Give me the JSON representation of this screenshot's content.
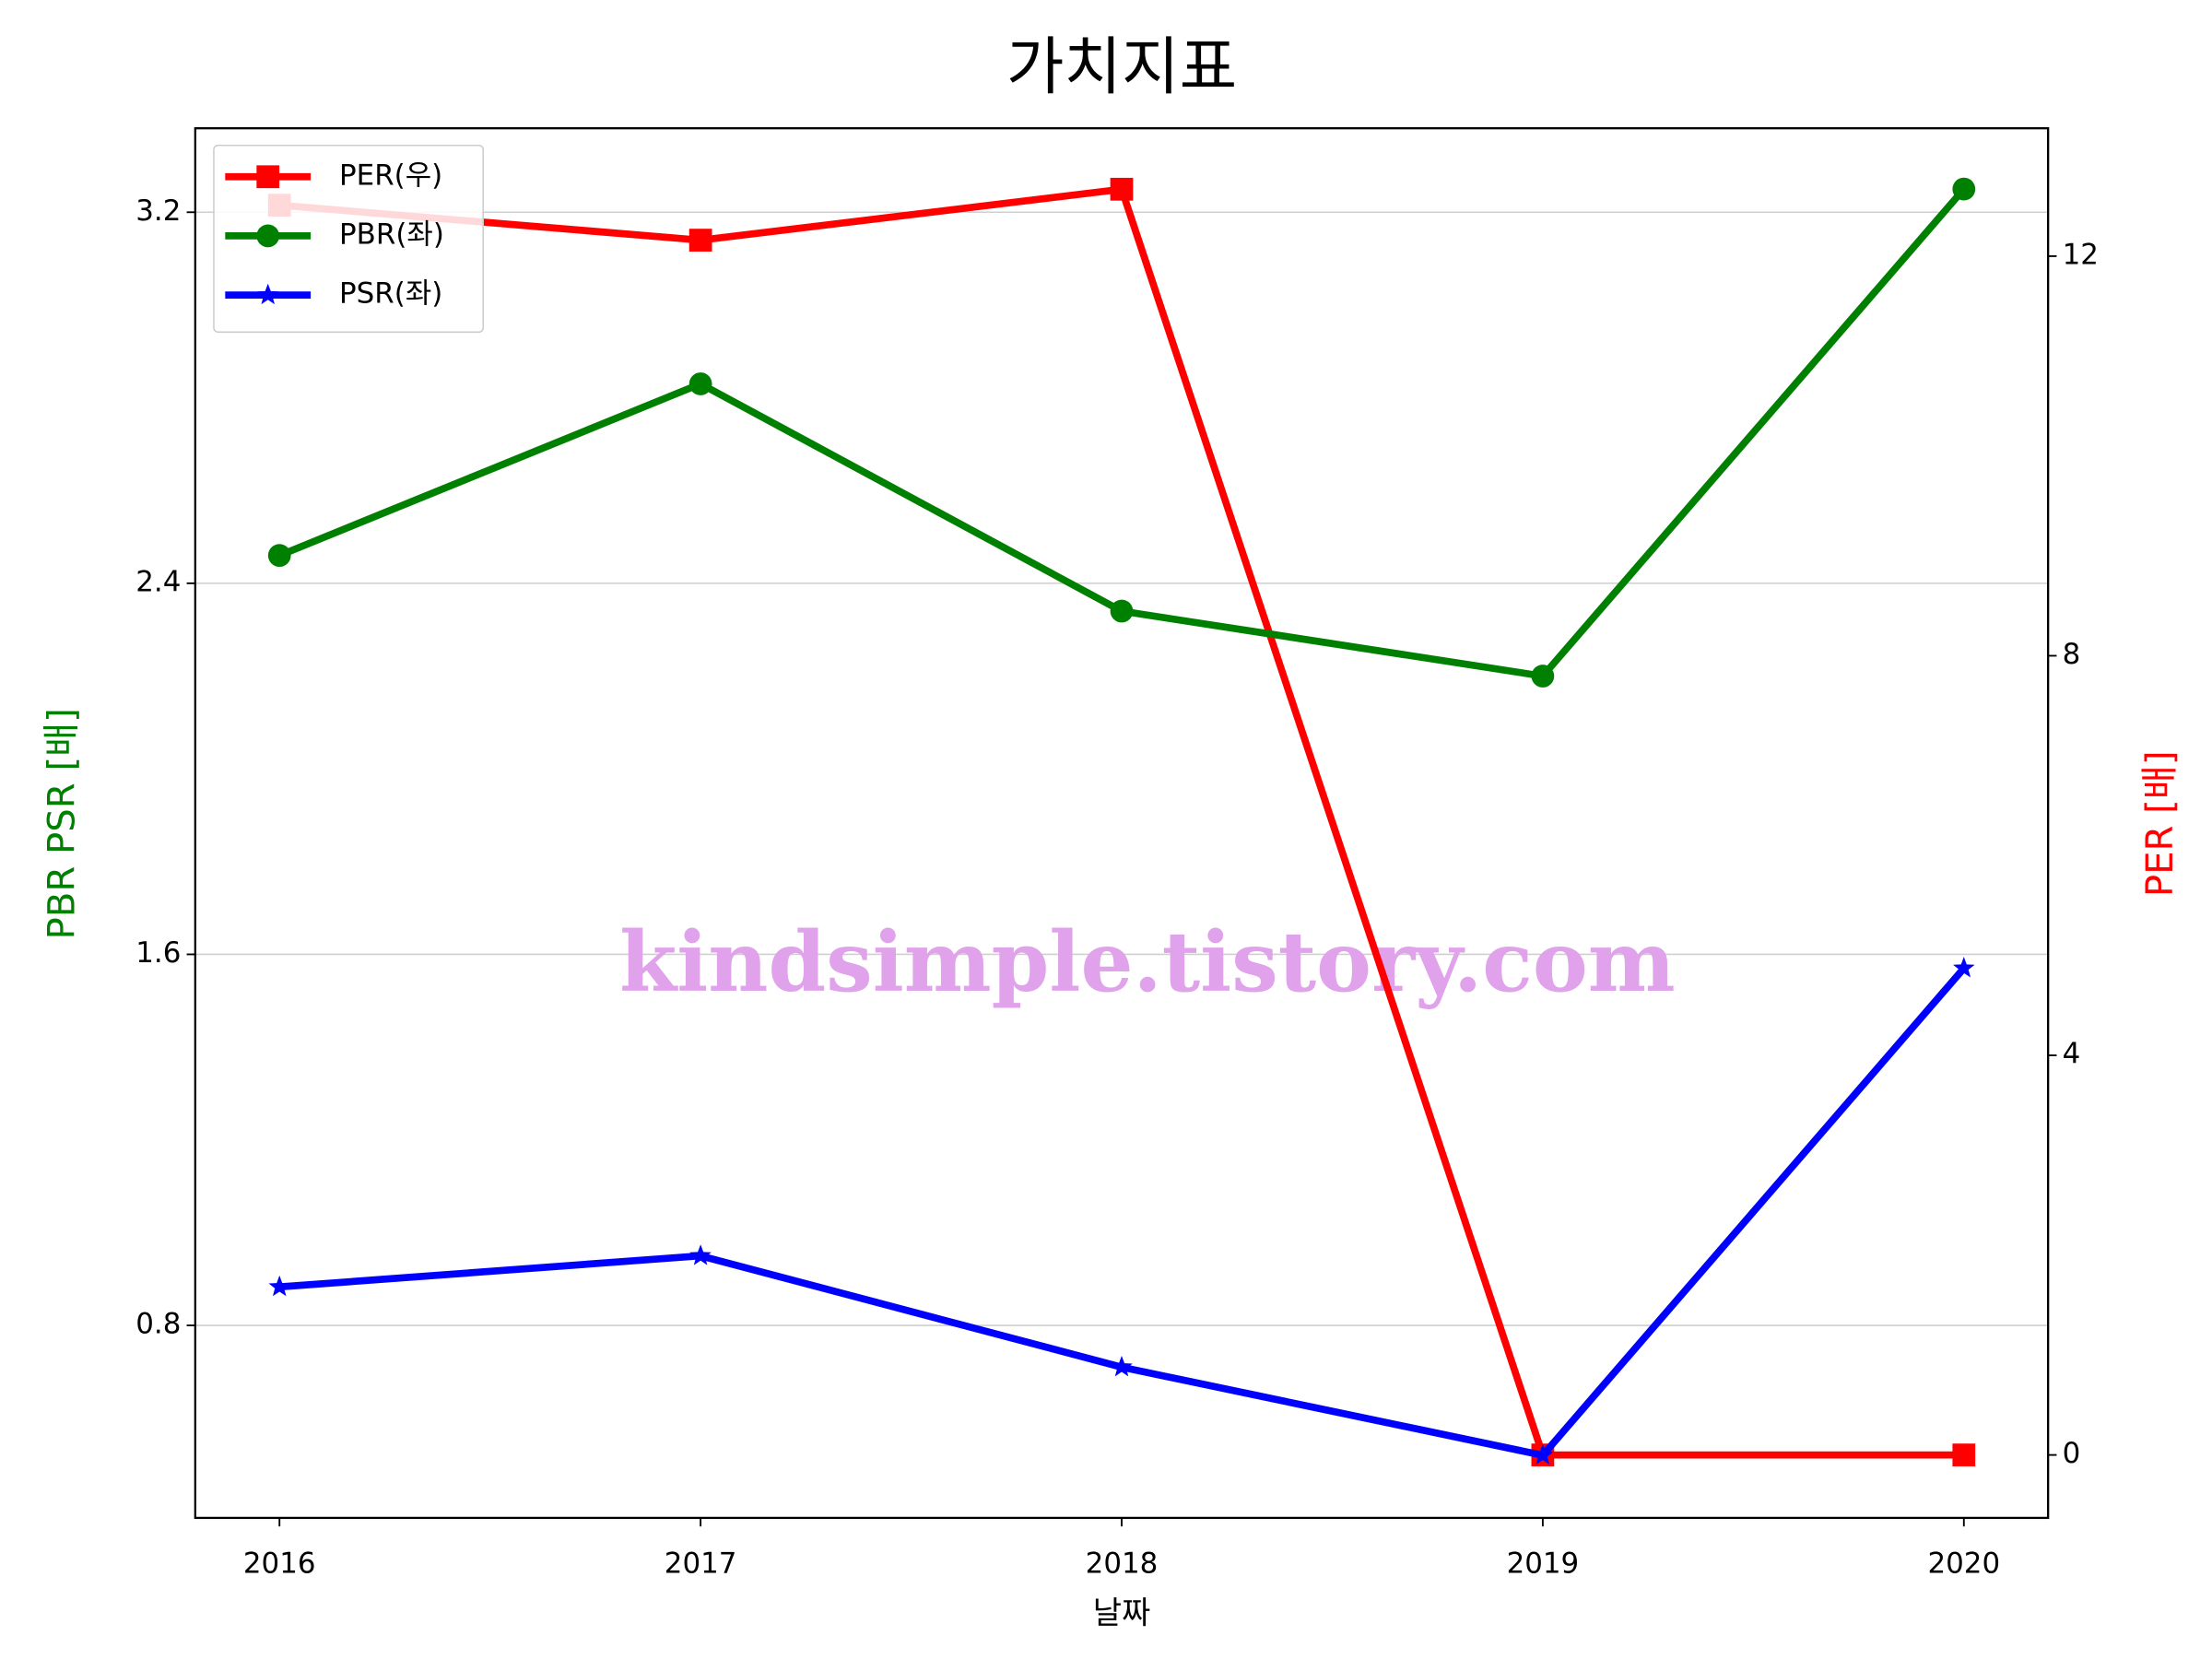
{
  "chart_data": {
    "type": "line",
    "title": "가치지표",
    "xlabel": "날짜",
    "ylabel": "PBR PSR [배]",
    "y2label": "PER [배]",
    "ylabel_color": "green",
    "y2label_color": "red",
    "watermark": "kindsimple.tistory.com",
    "x": [
      2016,
      2017,
      2018,
      2019,
      2020
    ],
    "xlim": [
      2015.8,
      2020.2
    ],
    "xticks": [
      2016,
      2017,
      2018,
      2019,
      2020
    ],
    "ylim": [
      0.385,
      3.381
    ],
    "yticks": [
      0.8,
      1.6,
      2.4,
      3.2
    ],
    "y2lim": [
      -0.63,
      13.28
    ],
    "y2ticks": [
      0,
      4,
      8,
      12
    ],
    "grid": true,
    "legend": "upper left",
    "series": [
      {
        "name": "PER(우)",
        "color": "red",
        "marker": "square",
        "axis": "y2",
        "values": [
          12.51,
          12.16,
          12.67,
          0,
          0
        ]
      },
      {
        "name": "PBR(좌)",
        "color": "green",
        "marker": "circle",
        "values": [
          2.46,
          2.83,
          2.34,
          2.2,
          3.25
        ]
      },
      {
        "name": "PSR(좌)",
        "color": "blue",
        "marker": "star",
        "values": [
          0.883,
          0.95,
          0.71,
          0.52,
          1.57
        ]
      }
    ]
  }
}
